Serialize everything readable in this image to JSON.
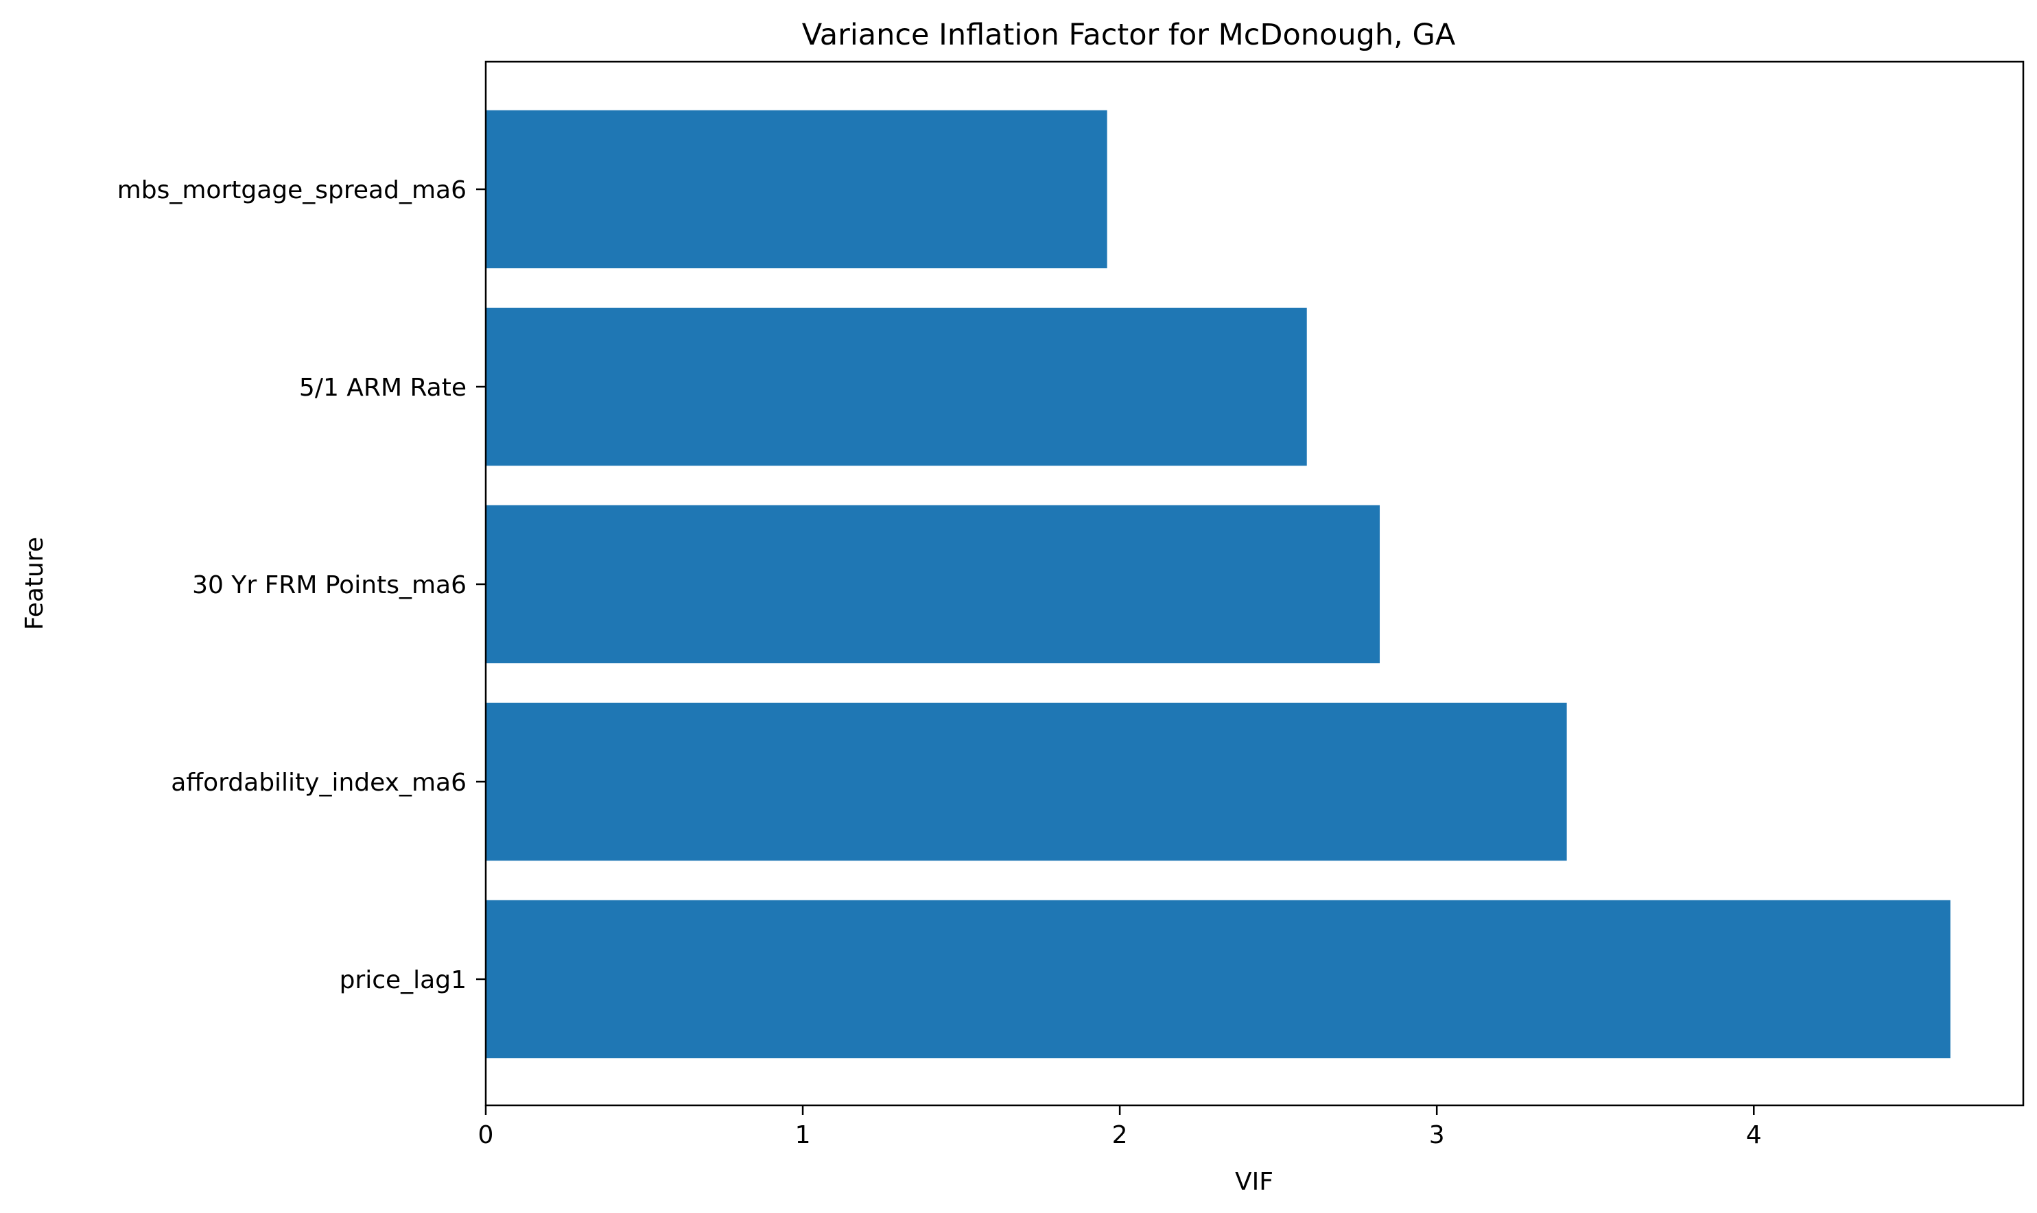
{
  "chart_data": {
    "type": "bar",
    "orientation": "horizontal",
    "title": "Variance Inflation Factor for McDonough, GA",
    "xlabel": "VIF",
    "ylabel": "Feature",
    "categories": [
      "price_lag1",
      "affordability_index_ma6",
      "30 Yr FRM Points_ma6",
      "5/1 ARM Rate",
      "mbs_mortgage_spread_ma6"
    ],
    "values": [
      4.62,
      3.41,
      2.82,
      2.59,
      1.96
    ],
    "xlim": [
      0,
      4.85
    ],
    "xticks": [
      0,
      1,
      2,
      3,
      4
    ],
    "grid": false,
    "legend": "none",
    "bar_color": "#1f77b4"
  }
}
